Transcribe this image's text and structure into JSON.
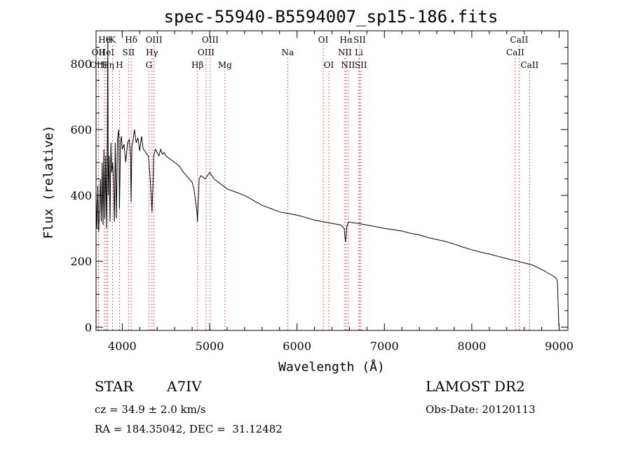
{
  "chart_data": {
    "type": "line",
    "title": "spec-55940-B5594007_sp15-186.fits",
    "xlabel": "Wavelength (Å)",
    "ylabel": "Flux (relative)",
    "xlim": [
      3700,
      9100
    ],
    "ylim": [
      -10,
      900
    ],
    "x_ticks": [
      4000,
      5000,
      6000,
      7000,
      8000,
      9000
    ],
    "y_ticks": [
      0,
      200,
      400,
      600,
      800
    ],
    "grid": false,
    "series": [
      {
        "x": [
          3700,
          3710,
          3720,
          3730,
          3740,
          3750,
          3760,
          3770,
          3780,
          3790,
          3800,
          3810,
          3820,
          3830,
          3835,
          3840,
          3850,
          3860,
          3870,
          3880,
          3890,
          3900,
          3910,
          3920,
          3933,
          3945,
          3960,
          3968,
          3980,
          3990,
          4000,
          4020,
          4040,
          4060,
          4080,
          4095,
          4101,
          4110,
          4120,
          4140,
          4160,
          4180,
          4200,
          4220,
          4240,
          4260,
          4280,
          4300,
          4320,
          4330,
          4340,
          4350,
          4360,
          4380,
          4400,
          4420,
          4440,
          4460,
          4480,
          4500,
          4550,
          4600,
          4650,
          4700,
          4750,
          4800,
          4820,
          4840,
          4855,
          4861,
          4866,
          4880,
          4900,
          4950,
          5000,
          5050,
          5100,
          5200,
          5300,
          5400,
          5500,
          5600,
          5700,
          5800,
          5900,
          6000,
          6100,
          6200,
          6300,
          6400,
          6500,
          6540,
          6555,
          6563,
          6570,
          6590,
          6620,
          6700,
          6800,
          6900,
          7000,
          7100,
          7200,
          7300,
          7400,
          7500,
          7600,
          7700,
          7800,
          7900,
          8000,
          8100,
          8200,
          8300,
          8400,
          8500,
          8600,
          8700,
          8800,
          8900,
          8960,
          8980,
          8990,
          8996,
          9000
        ],
        "y": [
          400,
          300,
          430,
          290,
          350,
          450,
          320,
          500,
          310,
          540,
          330,
          520,
          300,
          560,
          880,
          400,
          520,
          320,
          560,
          470,
          500,
          440,
          320,
          560,
          330,
          570,
          600,
          360,
          560,
          580,
          540,
          555,
          500,
          560,
          570,
          520,
          380,
          550,
          560,
          600,
          560,
          575,
          535,
          580,
          540,
          535,
          525,
          520,
          450,
          400,
          350,
          420,
          520,
          540,
          530,
          520,
          540,
          525,
          530,
          520,
          510,
          500,
          490,
          470,
          455,
          440,
          420,
          380,
          350,
          320,
          360,
          450,
          460,
          450,
          470,
          450,
          440,
          420,
          410,
          400,
          385,
          370,
          360,
          350,
          345,
          340,
          333,
          325,
          320,
          315,
          310,
          300,
          260,
          280,
          305,
          320,
          318,
          315,
          310,
          305,
          300,
          296,
          292,
          285,
          280,
          272,
          266,
          260,
          252,
          243,
          235,
          228,
          222,
          215,
          208,
          202,
          195,
          188,
          175,
          160,
          150,
          140,
          60,
          10,
          0
        ]
      }
    ],
    "lines": [
      {
        "label": "Hθ",
        "row": 0,
        "w": 3797
      },
      {
        "label": "OII",
        "row": 1,
        "w": 3727
      },
      {
        "label": "OIII",
        "row": 2,
        "w": 3727
      },
      {
        "label": "HeI",
        "row": 1,
        "w": 3820
      },
      {
        "label": "Hη",
        "row": 2,
        "w": 3835
      },
      {
        "label": "K",
        "row": 0,
        "w": 3889
      },
      {
        "label": "SII",
        "row": 1,
        "w": 4072
      },
      {
        "label": "H",
        "row": 2,
        "w": 3968
      },
      {
        "label": "Hδ",
        "row": 0,
        "w": 4102
      },
      {
        "label": "OIII",
        "row": 0,
        "w": 4363
      },
      {
        "label": "Hγ",
        "row": 1,
        "w": 4340
      },
      {
        "label": "G",
        "row": 2,
        "w": 4305
      },
      {
        "label": "Hβ",
        "row": 2,
        "w": 4861
      },
      {
        "label": "OIII",
        "row": 0,
        "w": 5007
      },
      {
        "label": "OIII",
        "row": 1,
        "w": 4959
      },
      {
        "label": "Mg",
        "row": 2,
        "w": 5175
      },
      {
        "label": "Na",
        "row": 1,
        "w": 5893
      },
      {
        "label": "OI",
        "row": 0,
        "w": 6300
      },
      {
        "label": "OI",
        "row": 2,
        "w": 6364
      },
      {
        "label": "Hα",
        "row": 0,
        "w": 6563
      },
      {
        "label": "SII",
        "row": 0,
        "w": 6716
      },
      {
        "label": "NII",
        "row": 1,
        "w": 6548
      },
      {
        "label": "Li",
        "row": 1,
        "w": 6708
      },
      {
        "label": "NII",
        "row": 2,
        "w": 6584
      },
      {
        "label": "SII",
        "row": 2,
        "w": 6731
      },
      {
        "label": "CaII",
        "row": 0,
        "w": 8542
      },
      {
        "label": "CaII",
        "row": 1,
        "w": 8498
      },
      {
        "label": "CaII",
        "row": 2,
        "w": 8662
      }
    ]
  },
  "info": {
    "object_type": "STAR",
    "spectral_class": "A7IV",
    "survey": "LAMOST DR2",
    "cz": "cz = 34.9 ± 2.0 km/s",
    "obs_date": "Obs-Date: 20120113",
    "coords": "RA = 184.35042, DEC =  31.12482"
  },
  "colors": {
    "axis": "#000000",
    "line_marker": "#d03030",
    "spectrum": "#000000"
  }
}
